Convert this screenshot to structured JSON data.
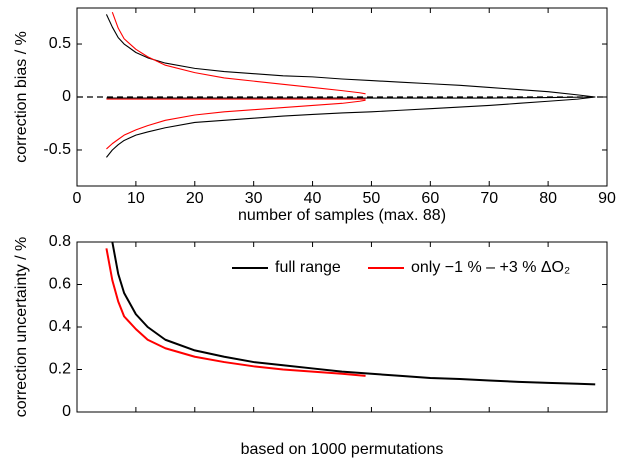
{
  "chart_data": [
    {
      "type": "line",
      "x_label": "number of samples (max. 88)",
      "y_label": "correction bias / %",
      "xlim": [
        0,
        90
      ],
      "xticks": [
        0,
        10,
        20,
        30,
        40,
        50,
        60,
        70,
        80,
        90
      ],
      "ylim": [
        -0.84,
        0.84
      ],
      "yticks": [
        -0.5,
        0,
        0.5
      ],
      "reference_line": {
        "value": 0,
        "color": "#000000",
        "style": "dashed"
      },
      "series": [
        {
          "color": "#000000",
          "x": [
            5,
            6,
            7,
            8,
            10,
            12,
            15,
            20,
            25,
            30,
            35,
            40,
            45,
            50,
            55,
            60,
            65,
            70,
            75,
            80,
            85,
            88
          ],
          "values": [
            0.78,
            0.66,
            0.56,
            0.5,
            0.42,
            0.37,
            0.32,
            0.27,
            0.24,
            0.22,
            0.2,
            0.19,
            0.17,
            0.155,
            0.14,
            0.125,
            0.11,
            0.09,
            0.07,
            0.05,
            0.02,
            0
          ]
        },
        {
          "color": "#000000",
          "x": [
            5,
            6,
            7,
            8,
            10,
            12,
            15,
            20,
            25,
            30,
            35,
            40,
            45,
            50,
            55,
            60,
            65,
            70,
            75,
            80,
            85,
            88
          ],
          "values": [
            -0.57,
            -0.5,
            -0.45,
            -0.41,
            -0.36,
            -0.33,
            -0.29,
            -0.24,
            -0.22,
            -0.2,
            -0.18,
            -0.165,
            -0.15,
            -0.14,
            -0.125,
            -0.11,
            -0.095,
            -0.08,
            -0.06,
            -0.04,
            -0.02,
            0
          ]
        },
        {
          "color": "#000000",
          "x": [
            5,
            10,
            20,
            30,
            40,
            50,
            60,
            70,
            80,
            88
          ],
          "values": [
            -0.01,
            -0.01,
            -0.01,
            -0.01,
            -0.01,
            -0.01,
            -0.01,
            -0.01,
            -0.005,
            0
          ]
        },
        {
          "color": "#ff0000",
          "x": [
            6,
            7,
            8,
            10,
            12,
            15,
            20,
            25,
            30,
            35,
            40,
            45,
            48,
            49
          ],
          "values": [
            0.8,
            0.65,
            0.55,
            0.45,
            0.38,
            0.3,
            0.23,
            0.18,
            0.15,
            0.12,
            0.09,
            0.06,
            0.04,
            0.03
          ]
        },
        {
          "color": "#ff0000",
          "x": [
            5,
            6,
            7,
            8,
            10,
            12,
            15,
            20,
            25,
            30,
            35,
            40,
            45,
            48,
            49
          ],
          "values": [
            -0.49,
            -0.44,
            -0.4,
            -0.36,
            -0.31,
            -0.27,
            -0.22,
            -0.17,
            -0.14,
            -0.12,
            -0.1,
            -0.08,
            -0.06,
            -0.04,
            -0.03
          ]
        },
        {
          "color": "#ff0000",
          "x": [
            5,
            10,
            20,
            30,
            40,
            49
          ],
          "values": [
            -0.02,
            -0.02,
            -0.02,
            -0.02,
            -0.02,
            -0.02
          ]
        }
      ]
    },
    {
      "type": "line",
      "x_label": "based on 1000 permutations",
      "y_label": "correction uncertainty / %",
      "xlim": [
        0,
        90
      ],
      "xticks": [
        0,
        10,
        20,
        30,
        40,
        50,
        60,
        70,
        80,
        90
      ],
      "xtick_labels": false,
      "ylim": [
        0,
        0.8
      ],
      "yticks": [
        0,
        0.2,
        0.4,
        0.6,
        0.8
      ],
      "legend": "top-right",
      "series": [
        {
          "name": "full range",
          "color": "#000000",
          "x": [
            6,
            7,
            8,
            10,
            12,
            15,
            20,
            25,
            30,
            35,
            40,
            45,
            50,
            55,
            60,
            65,
            70,
            75,
            80,
            85,
            88
          ],
          "values": [
            0.8,
            0.65,
            0.56,
            0.46,
            0.4,
            0.34,
            0.29,
            0.26,
            0.235,
            0.22,
            0.205,
            0.19,
            0.18,
            0.17,
            0.16,
            0.155,
            0.148,
            0.142,
            0.137,
            0.133,
            0.13
          ]
        },
        {
          "name": "only −1 % – +3 % ΔO₂",
          "color": "#ff0000",
          "x": [
            5,
            6,
            7,
            8,
            10,
            12,
            15,
            20,
            25,
            30,
            35,
            40,
            45,
            49
          ],
          "values": [
            0.77,
            0.62,
            0.52,
            0.45,
            0.39,
            0.34,
            0.3,
            0.26,
            0.235,
            0.215,
            0.2,
            0.19,
            0.18,
            0.17
          ]
        }
      ]
    }
  ]
}
